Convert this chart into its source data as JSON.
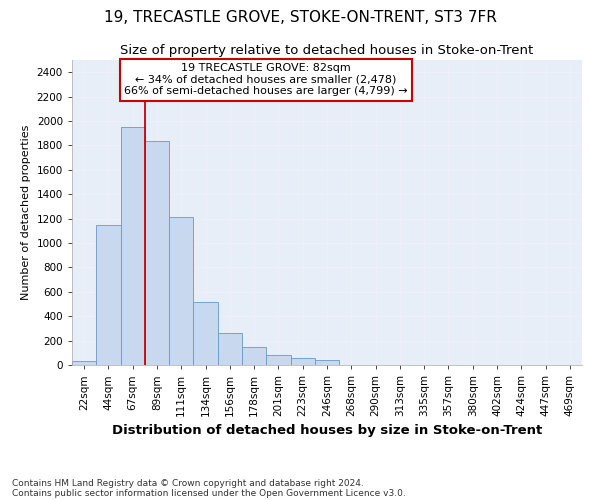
{
  "title": "19, TRECASTLE GROVE, STOKE-ON-TRENT, ST3 7FR",
  "subtitle": "Size of property relative to detached houses in Stoke-on-Trent",
  "xlabel": "Distribution of detached houses by size in Stoke-on-Trent",
  "ylabel": "Number of detached properties",
  "categories": [
    "22sqm",
    "44sqm",
    "67sqm",
    "89sqm",
    "111sqm",
    "134sqm",
    "156sqm",
    "178sqm",
    "201sqm",
    "223sqm",
    "246sqm",
    "268sqm",
    "290sqm",
    "313sqm",
    "335sqm",
    "357sqm",
    "380sqm",
    "402sqm",
    "424sqm",
    "447sqm",
    "469sqm"
  ],
  "values": [
    30,
    1150,
    1950,
    1835,
    1215,
    515,
    265,
    150,
    80,
    55,
    40,
    0,
    0,
    0,
    0,
    0,
    0,
    0,
    0,
    0,
    0
  ],
  "bar_color": "#c8d8ef",
  "bar_edge_color": "#6699cc",
  "vline_color": "#cc0000",
  "annotation_text": "19 TRECASTLE GROVE: 82sqm\n← 34% of detached houses are smaller (2,478)\n66% of semi-detached houses are larger (4,799) →",
  "annotation_box_color": "#ffffff",
  "annotation_box_edge": "#cc0000",
  "ylim": [
    0,
    2500
  ],
  "yticks": [
    0,
    200,
    400,
    600,
    800,
    1000,
    1200,
    1400,
    1600,
    1800,
    2000,
    2200,
    2400
  ],
  "footer1": "Contains HM Land Registry data © Crown copyright and database right 2024.",
  "footer2": "Contains public sector information licensed under the Open Government Licence v3.0.",
  "bg_color": "#e8eef8",
  "grid_color": "#f0f0f8",
  "fig_bg": "#ffffff",
  "title_fontsize": 11,
  "subtitle_fontsize": 9.5,
  "xlabel_fontsize": 9.5,
  "ylabel_fontsize": 8,
  "tick_fontsize": 7.5,
  "footer_fontsize": 6.5,
  "ann_fontsize": 8
}
